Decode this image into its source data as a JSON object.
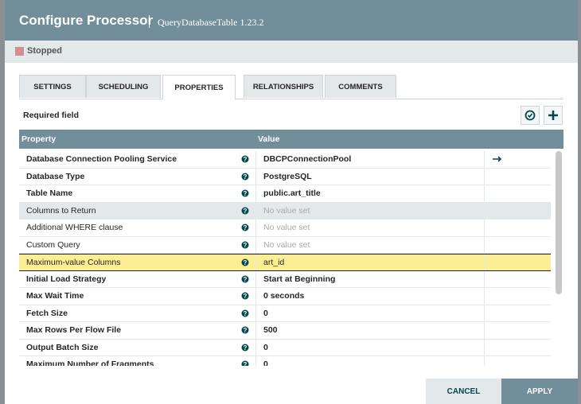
{
  "header": {
    "title": "Configure Processor",
    "subtitle": "QueryDatabaseTable 1.23.2"
  },
  "status": "Stopped",
  "tabs": [
    {
      "label": "SETTINGS"
    },
    {
      "label": "SCHEDULING"
    },
    {
      "label": "PROPERTIES",
      "active": true
    },
    {
      "label": "RELATIONSHIPS"
    },
    {
      "label": "COMMENTS"
    }
  ],
  "required_field": "Required field",
  "table": {
    "columns": [
      "Property",
      "Value"
    ],
    "rows": [
      {
        "property": "Database Connection Pooling Service",
        "value": "DBCPConnectionPool",
        "required": true,
        "link": true
      },
      {
        "property": "Database Type",
        "value": "PostgreSQL",
        "required": true
      },
      {
        "property": "Table Name",
        "value": "public.art_title",
        "required": true
      },
      {
        "property": "Columns to Return",
        "value": "No value set",
        "required": false,
        "empty": true,
        "hover": true
      },
      {
        "property": "Additional WHERE clause",
        "value": "No value set",
        "required": false,
        "empty": true
      },
      {
        "property": "Custom Query",
        "value": "No value set",
        "required": false,
        "empty": true
      },
      {
        "property": "Maximum-value Columns",
        "value": "art_id",
        "required": false,
        "selected": true
      },
      {
        "property": "Initial Load Strategy",
        "value": "Start at Beginning",
        "required": true
      },
      {
        "property": "Max Wait Time",
        "value": "0 seconds",
        "required": true
      },
      {
        "property": "Fetch Size",
        "value": "0",
        "required": true
      },
      {
        "property": "Max Rows Per Flow File",
        "value": "500",
        "required": true
      },
      {
        "property": "Output Batch Size",
        "value": "0",
        "required": true
      },
      {
        "property": "Maximum Number of Fragments",
        "value": "0",
        "required": true
      }
    ]
  },
  "buttons": {
    "cancel": "CANCEL",
    "apply": "APPLY"
  }
}
